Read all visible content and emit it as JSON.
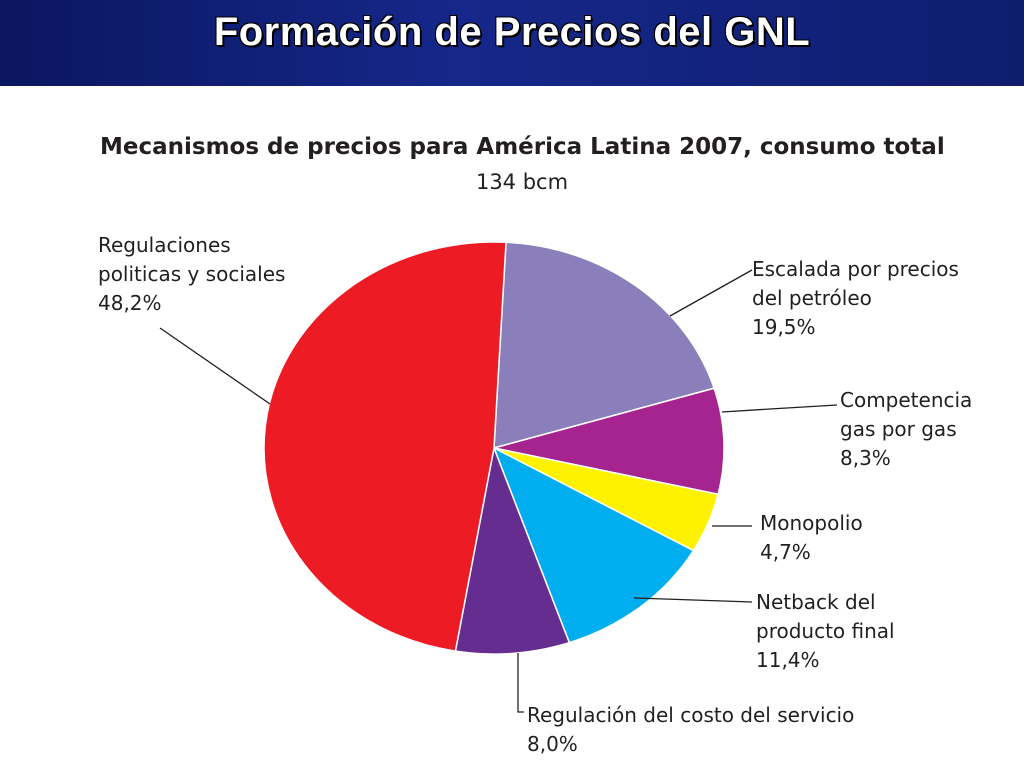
{
  "header": {
    "title": "Formación de Precios del GNL"
  },
  "chart_data": {
    "type": "pie",
    "title": "Mecanismos de precios para América Latina 2007, consumo total",
    "subtitle": "134 bcm",
    "slices": [
      {
        "label_lines": [
          "Escalada por precios",
          "del petróleo"
        ],
        "value": 19.5,
        "value_label": "19,5%",
        "color": "#8a7fbb"
      },
      {
        "label_lines": [
          "Competencia",
          "gas por gas"
        ],
        "value": 8.3,
        "value_label": "8,3%",
        "color": "#a6248f"
      },
      {
        "label_lines": [
          "Monopolio"
        ],
        "value": 4.7,
        "value_label": "4,7%",
        "color": "#fff200"
      },
      {
        "label_lines": [
          "Netback del",
          "producto final"
        ],
        "value": 11.4,
        "value_label": "11,4%",
        "color": "#00aeef"
      },
      {
        "label_lines": [
          "Regulación del costo del servicio"
        ],
        "value": 8.0,
        "value_label": "8,0%",
        "color": "#662d91"
      },
      {
        "label_lines": [
          "Regulaciones",
          "politicas y sociales"
        ],
        "value": 48.2,
        "value_label": "48,2%",
        "color": "#ed1c24"
      }
    ]
  }
}
